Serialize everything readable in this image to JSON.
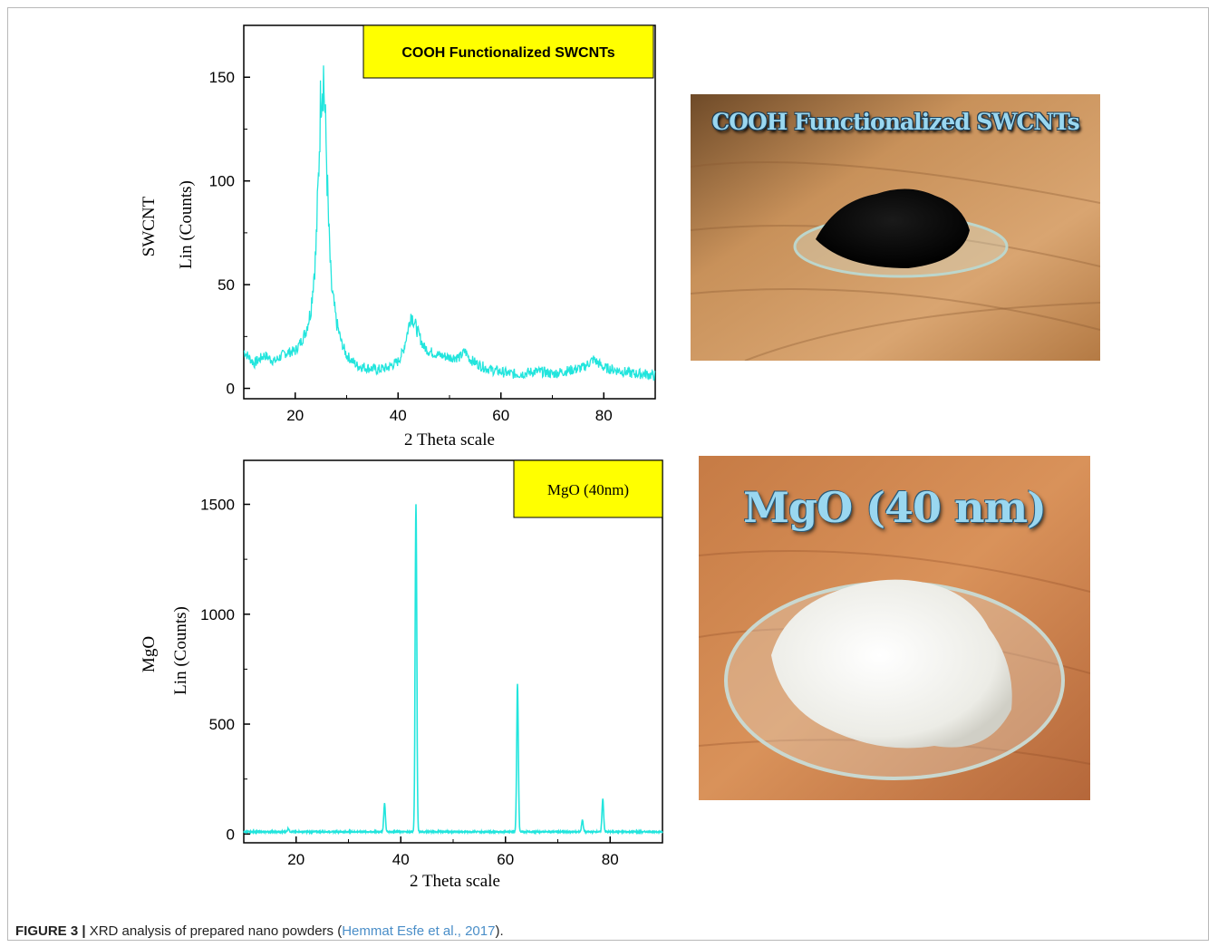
{
  "chart_data": [
    {
      "type": "line",
      "legend_box": "COOH Functionalized SWCNTs",
      "ylabel_outer": "SWCNT",
      "ylabel": "Lin (Counts)",
      "xlabel": "2 Theta scale",
      "xlim": [
        10,
        90
      ],
      "ylim": [
        -5,
        175
      ],
      "xticks": [
        20,
        40,
        60,
        80
      ],
      "yticks": [
        0,
        50,
        100,
        150
      ],
      "line_color": "#22e5dd",
      "series": [
        {
          "x": [
            10,
            12,
            14,
            16,
            18,
            20,
            21,
            22,
            23,
            24,
            24.5,
            25,
            25.5,
            26,
            26.5,
            27,
            28,
            29,
            30,
            32,
            34,
            36,
            38,
            40,
            41,
            42,
            42.5,
            43,
            44,
            45,
            46,
            48,
            50,
            52,
            53,
            54,
            56,
            58,
            60,
            62,
            64,
            66,
            68,
            70,
            72,
            74,
            76,
            78,
            80,
            82,
            84,
            86,
            88,
            90
          ],
          "y": [
            18,
            12,
            16,
            13,
            17,
            18,
            22,
            27,
            37,
            65,
            100,
            145,
            152,
            118,
            78,
            50,
            32,
            22,
            16,
            11,
            10,
            9,
            10,
            13,
            18,
            29,
            36,
            33,
            26,
            20,
            18,
            16,
            15,
            15,
            18,
            14,
            11,
            9,
            8,
            7,
            7,
            8,
            8,
            7,
            8,
            9,
            10,
            14,
            10,
            9,
            8,
            7,
            7,
            6
          ]
        }
      ]
    },
    {
      "type": "line",
      "legend_box": "MgO (40nm)",
      "ylabel_outer": "MgO",
      "ylabel": "Lin (Counts)",
      "xlabel": "2 Theta scale",
      "xlim": [
        10,
        90
      ],
      "ylim": [
        -40,
        1700
      ],
      "xticks": [
        20,
        40,
        60,
        80
      ],
      "yticks": [
        0,
        500,
        1000,
        1500
      ],
      "line_color": "#22e5dd",
      "series": [
        {
          "peaks": [
            {
              "x": 18.5,
              "y": 25
            },
            {
              "x": 36.9,
              "y": 140
            },
            {
              "x": 42.9,
              "y": 1500
            },
            {
              "x": 62.3,
              "y": 680
            },
            {
              "x": 74.7,
              "y": 65
            },
            {
              "x": 78.6,
              "y": 160
            }
          ],
          "baseline": 10
        }
      ]
    }
  ],
  "photos": [
    {
      "caption": "COOH Functionalized SWCNTs"
    },
    {
      "caption": "MgO (40 nm)"
    }
  ],
  "figure_caption": {
    "label": "FIGURE 3 |",
    "text": " XRD analysis of prepared nano powders (",
    "reference": "Hemmat Esfe et al., 2017",
    "tail": ")."
  },
  "colors": {
    "trace": "#22e5dd",
    "legend_box": "#ffff00"
  }
}
